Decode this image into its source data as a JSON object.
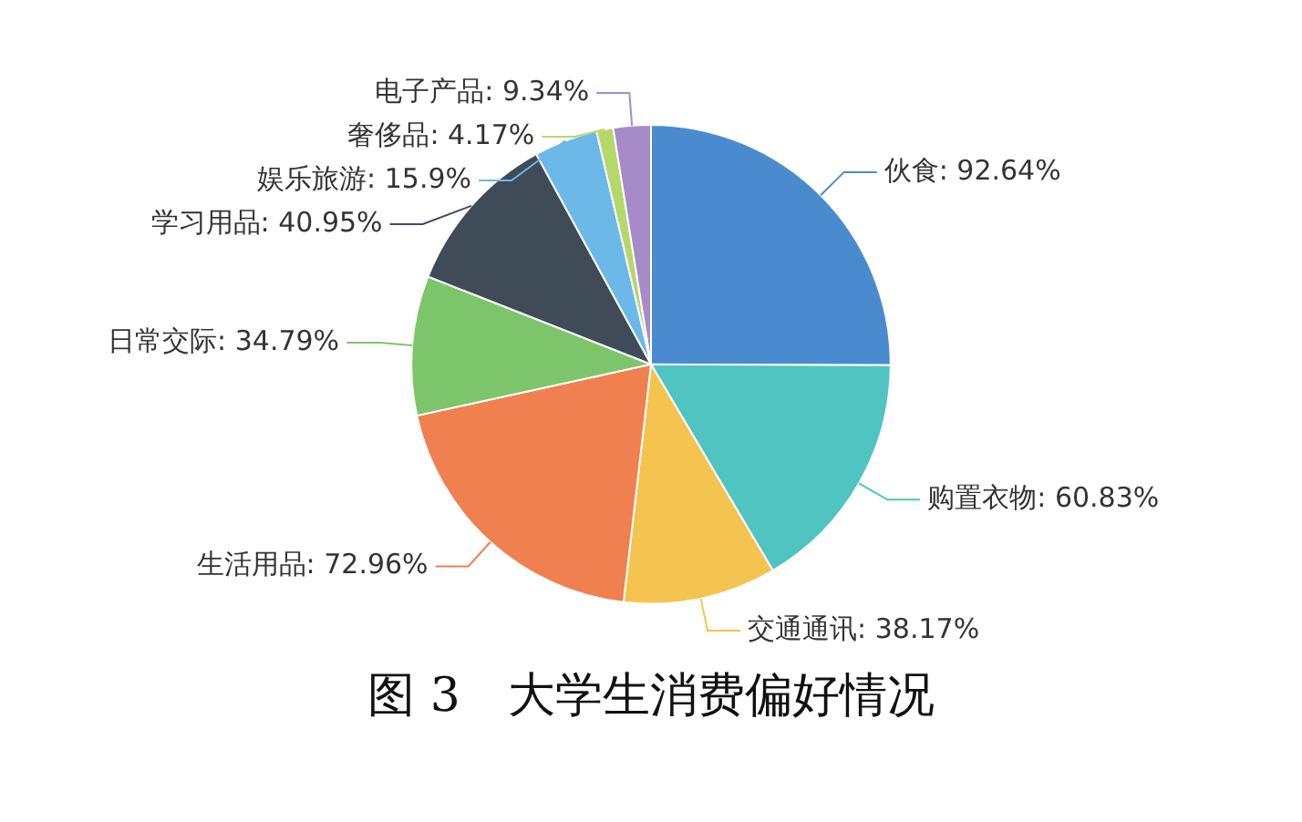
{
  "chart_data": {
    "type": "pie",
    "title": "图 3　大学生消费偏好情况",
    "categories": [
      "伙食",
      "购置衣物",
      "交通通讯",
      "生活用品",
      "日常交际",
      "学习用品",
      "娱乐旅游",
      "奢侈品",
      "电子产品"
    ],
    "values": [
      92.64,
      60.83,
      38.17,
      72.96,
      34.79,
      40.95,
      15.9,
      4.17,
      9.34
    ],
    "value_labels": [
      "92.64%",
      "60.83%",
      "38.17%",
      "72.96%",
      "34.79%",
      "40.95%",
      "15.9%",
      "4.17%",
      "9.34%"
    ],
    "colors": [
      "#4a8bd0",
      "#4fc4c0",
      "#f5c350",
      "#f08050",
      "#7dc56a",
      "#3f4b57",
      "#6cb8e8",
      "#b5d86a",
      "#a68bc8"
    ],
    "legend": false
  }
}
